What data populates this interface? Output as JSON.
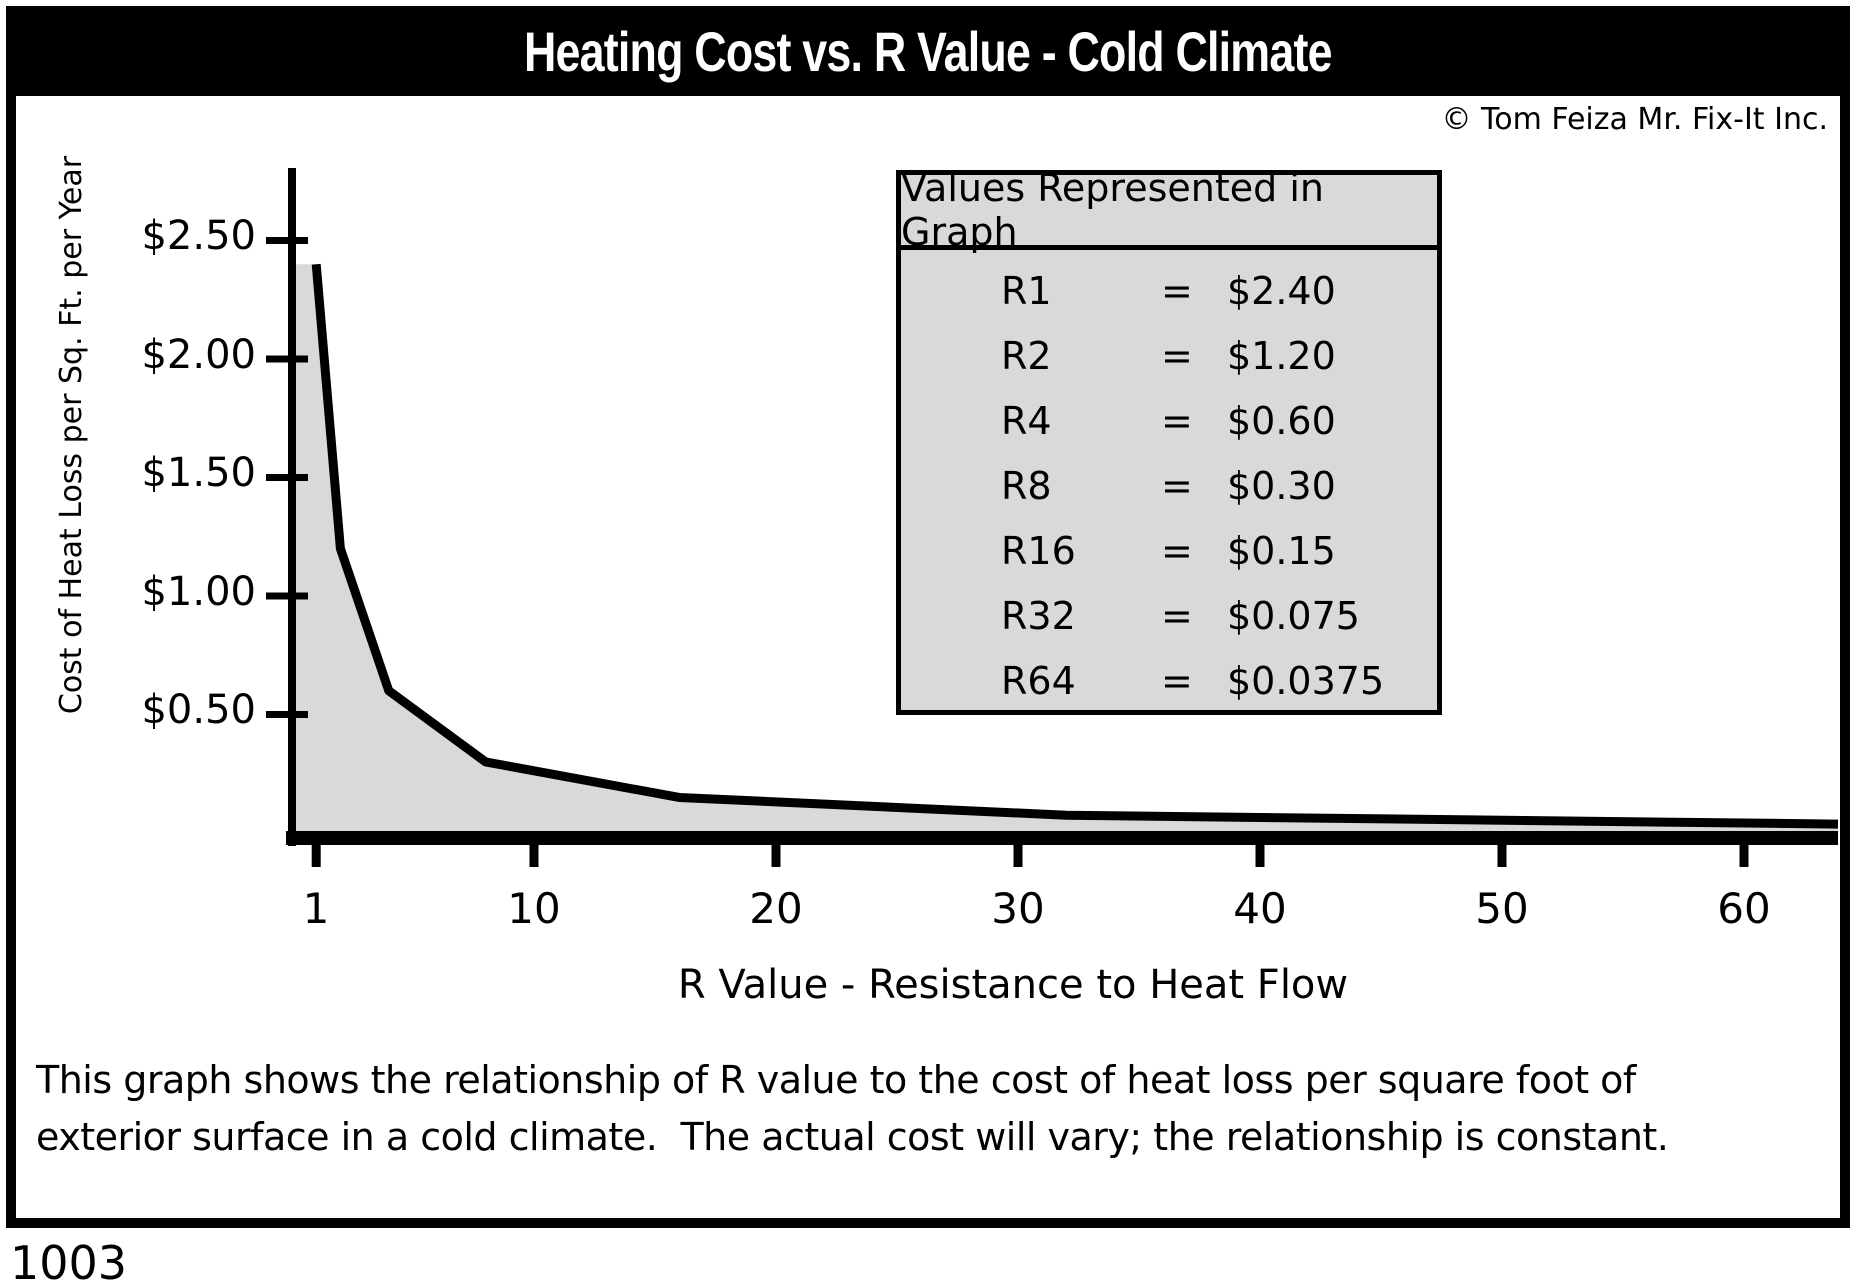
{
  "title_bar": {
    "title": "Heating Cost vs. R Value - Cold Climate"
  },
  "copyright": "© Tom Feiza Mr. Fix-It Inc.",
  "chart_data": {
    "type": "area",
    "title": "Heating Cost vs. R Value - Cold Climate",
    "xlabel": "R Value - Resistance to Heat Flow",
    "ylabel": "Cost of Heat Loss per Sq. Ft. per Year",
    "x": [
      1,
      2,
      4,
      8,
      16,
      32,
      64
    ],
    "y": [
      2.4,
      1.2,
      0.6,
      0.3,
      0.15,
      0.075,
      0.0375
    ],
    "x_ticks": [
      1,
      10,
      20,
      30,
      40,
      50,
      60
    ],
    "y_ticks": [
      0.5,
      1.0,
      1.5,
      2.0,
      2.5
    ],
    "y_tick_labels": [
      "$0.50",
      "$1.00",
      "$1.50",
      "$2.00",
      "$2.50"
    ],
    "xlim": [
      0,
      64
    ],
    "ylim": [
      0,
      2.8
    ],
    "grid": false,
    "legend_position": "upper right",
    "line_color": "#000000",
    "fill_color": "#d9d9d9"
  },
  "legend": {
    "title": "Values Represented in Graph",
    "equals": "=",
    "rows": [
      {
        "label": "R1",
        "value": "$2.40"
      },
      {
        "label": "R2",
        "value": "$1.20"
      },
      {
        "label": "R4",
        "value": "$0.60"
      },
      {
        "label": "R8",
        "value": "$0.30"
      },
      {
        "label": "R16",
        "value": "$0.15"
      },
      {
        "label": "R32",
        "value": "$0.075"
      },
      {
        "label": "R64",
        "value": "$0.0375"
      }
    ]
  },
  "caption": {
    "line1": "This graph shows the relationship of R value to the cost of heat loss per square foot of",
    "line2": "exterior surface in a cold climate.  The actual cost will vary; the relationship is constant."
  },
  "figure_number": "1003"
}
